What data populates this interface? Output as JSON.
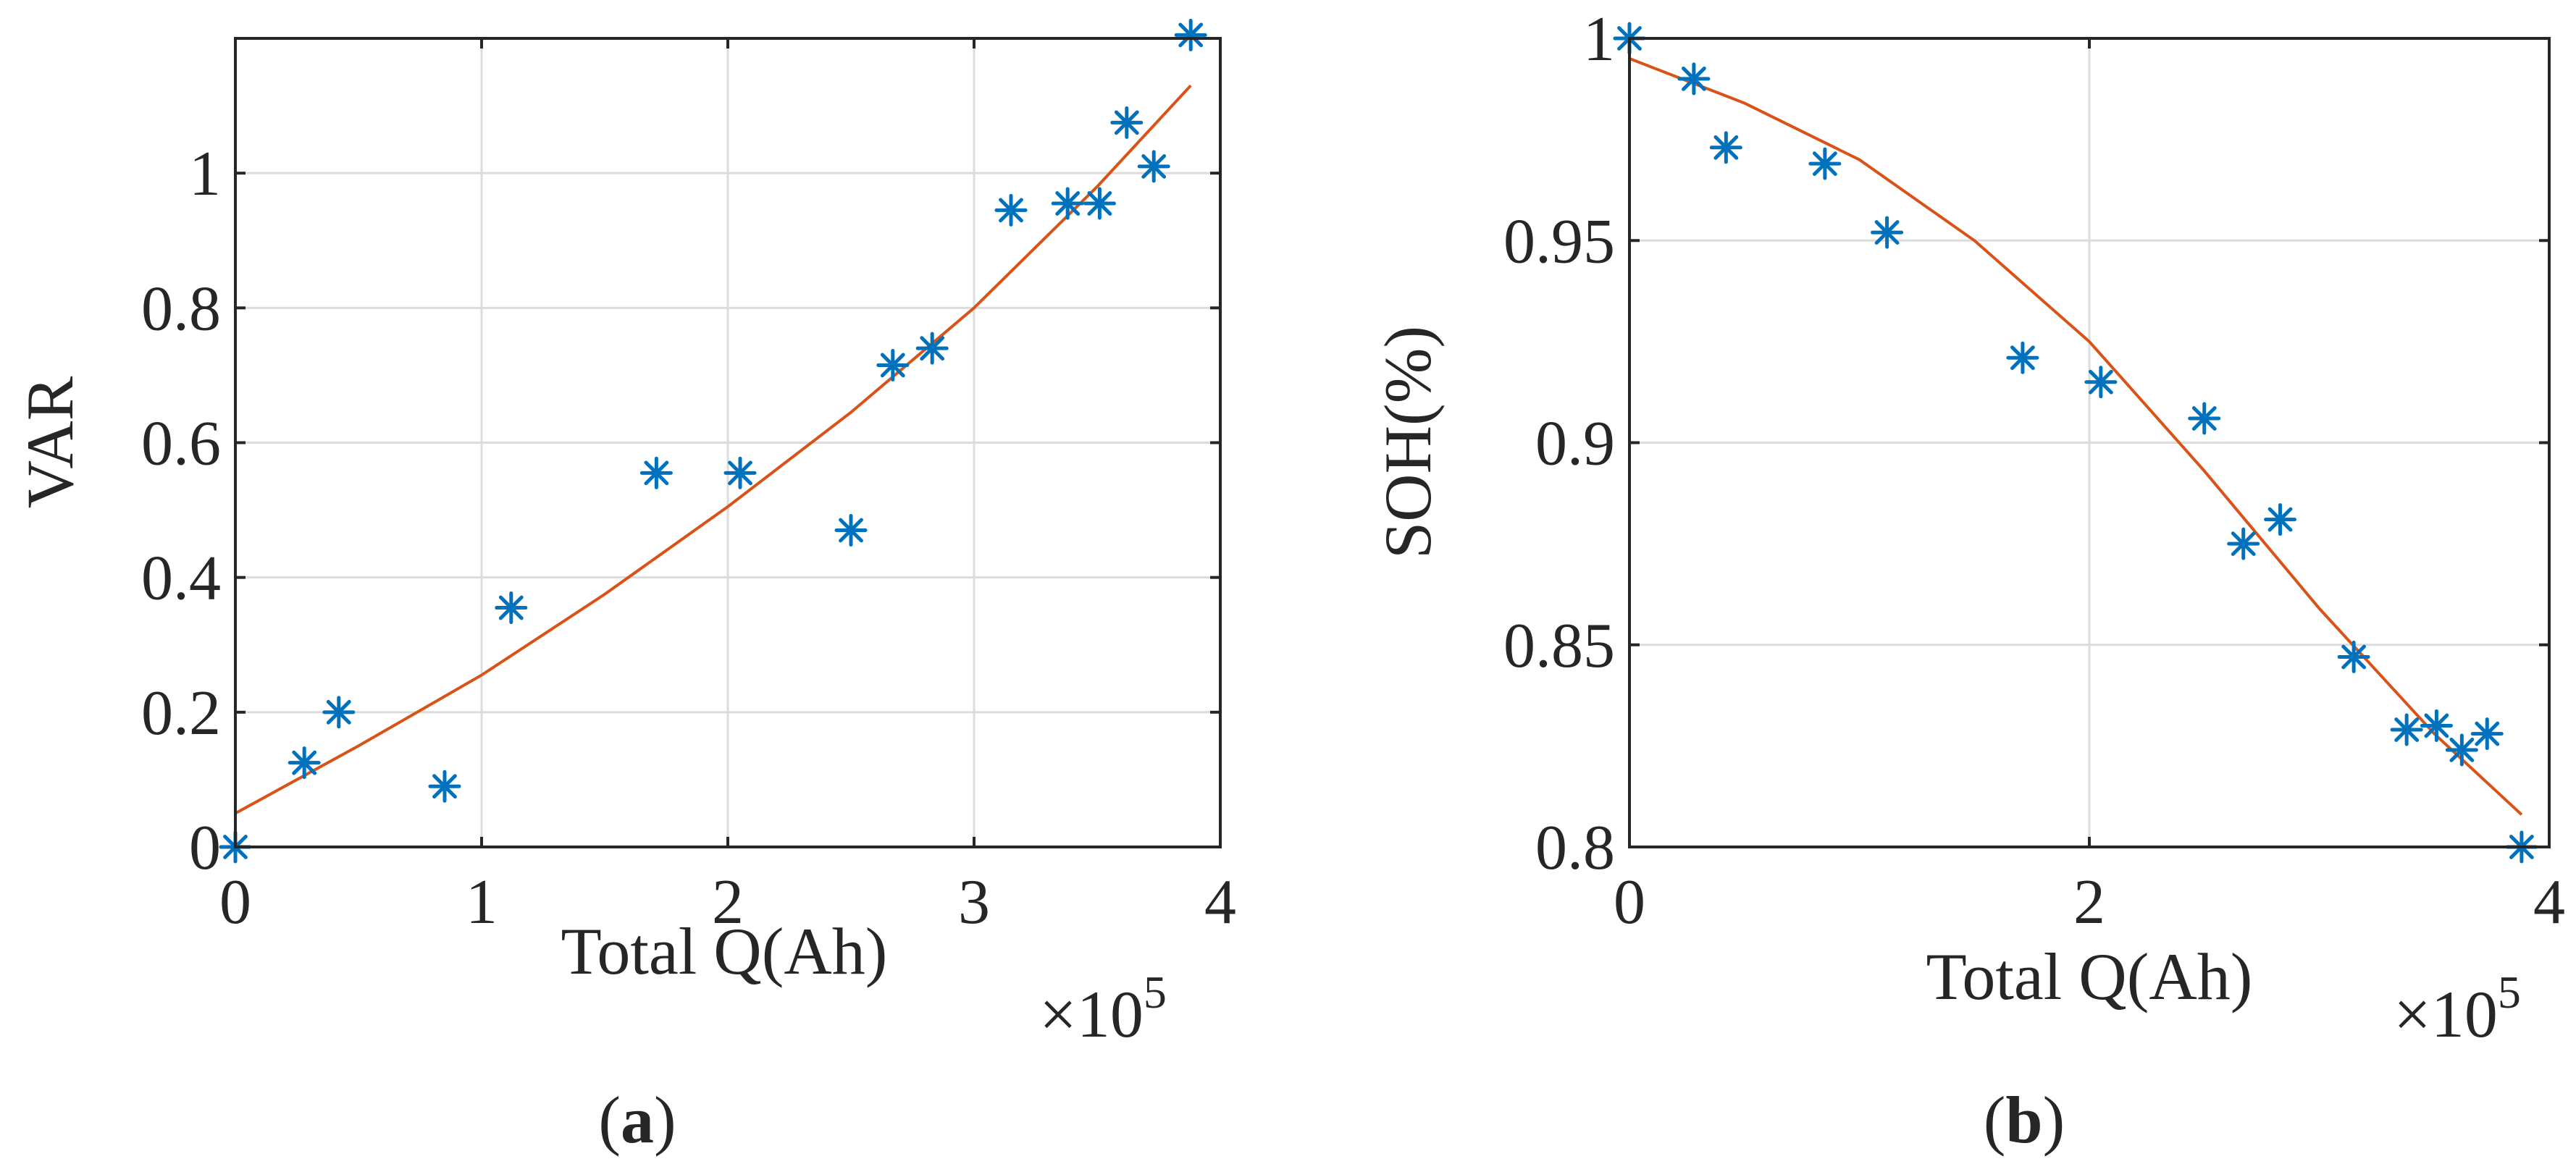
{
  "chart_data": [
    {
      "type": "scatter",
      "caption": "a",
      "xlabel": "Total Q(Ah)",
      "ylabel": "VAR",
      "x_multiplier_label": {
        "base": "×10",
        "exponent": "5"
      },
      "xlim": [
        0,
        4
      ],
      "ylim": [
        0,
        1.2
      ],
      "xticks": [
        0,
        1,
        2,
        3,
        4
      ],
      "xtick_labels": [
        "0",
        "1",
        "2",
        "3",
        "4"
      ],
      "yticks": [
        0,
        0.2,
        0.4,
        0.6,
        0.8,
        1
      ],
      "ytick_labels": [
        "0",
        "0.2",
        "0.4",
        "0.6",
        "0.8",
        "1"
      ],
      "grid": true,
      "series": [
        {
          "kind": "markers",
          "marker": "asterisk",
          "x": [
            0,
            0.28,
            0.42,
            0.85,
            1.12,
            1.71,
            2.05,
            2.5,
            2.67,
            2.83,
            3.15,
            3.38,
            3.51,
            3.62,
            3.73,
            3.88
          ],
          "y": [
            0,
            0.125,
            0.2,
            0.09,
            0.355,
            0.555,
            0.555,
            0.47,
            0.715,
            0.74,
            0.945,
            0.955,
            0.955,
            1.075,
            1.01,
            1.205
          ]
        },
        {
          "kind": "line",
          "x": [
            0,
            0.5,
            1.0,
            1.5,
            2.0,
            2.5,
            3.0,
            3.5,
            3.88
          ],
          "y": [
            0.05,
            0.15,
            0.255,
            0.375,
            0.505,
            0.645,
            0.8,
            0.98,
            1.13
          ]
        }
      ],
      "colors": {
        "markers": "#0072bd",
        "line": "#d95319"
      }
    },
    {
      "type": "scatter",
      "caption": "b",
      "xlabel": "Total Q(Ah)",
      "ylabel": "SOH(%)",
      "x_multiplier_label": {
        "base": "×10",
        "exponent": "5"
      },
      "xlim": [
        0,
        4
      ],
      "ylim": [
        0.8,
        1.0
      ],
      "xticks": [
        0,
        2,
        4
      ],
      "xtick_labels": [
        "0",
        "2",
        "4"
      ],
      "yticks": [
        0.8,
        0.85,
        0.9,
        0.95,
        1
      ],
      "ytick_labels": [
        "0.8",
        "0.85",
        "0.9",
        "0.95",
        "1"
      ],
      "grid": true,
      "series": [
        {
          "kind": "markers",
          "marker": "asterisk",
          "x": [
            0,
            0.28,
            0.42,
            0.85,
            1.12,
            1.71,
            2.05,
            2.5,
            2.67,
            2.83,
            3.15,
            3.38,
            3.51,
            3.62,
            3.73,
            3.88
          ],
          "y": [
            1.0,
            0.99,
            0.973,
            0.969,
            0.952,
            0.921,
            0.915,
            0.906,
            0.875,
            0.881,
            0.847,
            0.829,
            0.83,
            0.824,
            0.828,
            0.8
          ]
        },
        {
          "kind": "line",
          "x": [
            0,
            0.5,
            1.0,
            1.5,
            2.0,
            2.5,
            3.0,
            3.5,
            3.88
          ],
          "y": [
            0.995,
            0.984,
            0.97,
            0.95,
            0.925,
            0.893,
            0.859,
            0.828,
            0.808
          ]
        }
      ],
      "colors": {
        "markers": "#0072bd",
        "line": "#d95319"
      }
    }
  ]
}
